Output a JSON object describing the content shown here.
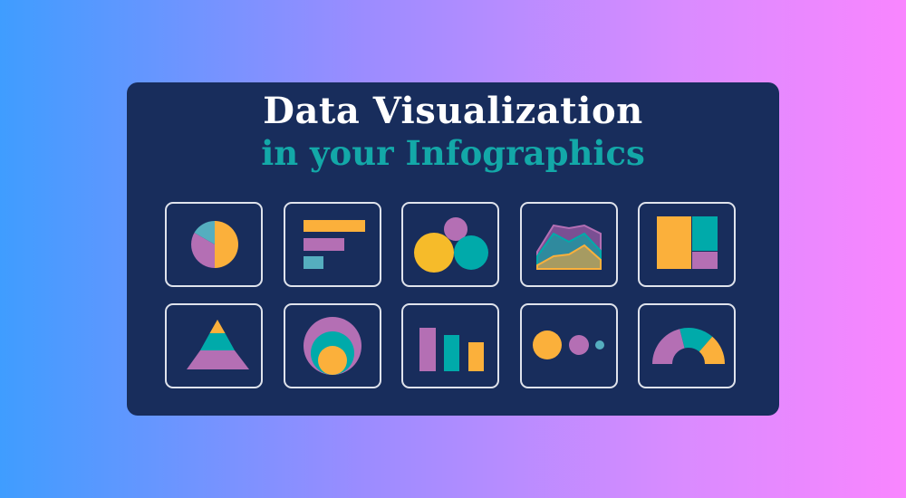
{
  "header": {
    "title": "Data Visualization",
    "subtitle": "in your Infographics"
  },
  "colors": {
    "card": "#182d5c",
    "subtitle": "#13a8a8",
    "orange": "#fbb03b",
    "purple": "#b46fb4",
    "teal": "#00aaaa",
    "light_teal": "#55aebf",
    "yellow": "#f6bb2a"
  },
  "icons": [
    "pie-chart-icon",
    "horizontal-bar-chart-icon",
    "bubble-chart-icon",
    "area-chart-icon",
    "treemap-icon",
    "pyramid-chart-icon",
    "nested-circles-icon",
    "bar-chart-icon",
    "proportional-dots-icon",
    "gauge-chart-icon"
  ]
}
